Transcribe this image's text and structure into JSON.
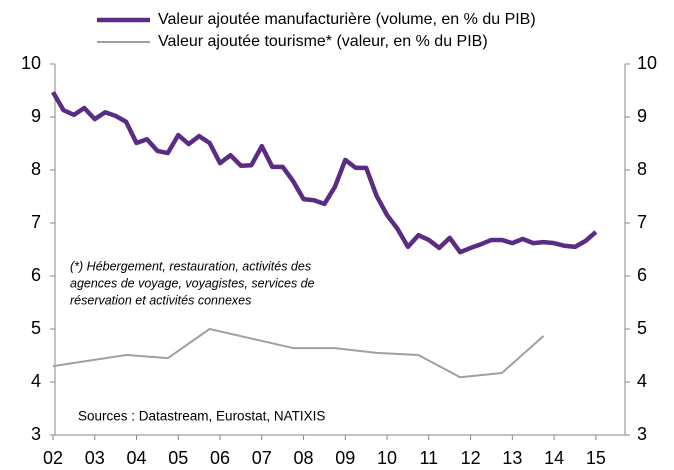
{
  "chart_data": {
    "type": "line",
    "series": [
      {
        "name": "Valeur ajoutée manufacturière (volume, en % du PIB)",
        "color": "#5b2c83",
        "x": [
          2002,
          2002.25,
          2002.5,
          2002.75,
          2003,
          2003.25,
          2003.5,
          2003.75,
          2004,
          2004.25,
          2004.5,
          2004.75,
          2005,
          2005.25,
          2005.5,
          2005.75,
          2006,
          2006.25,
          2006.5,
          2006.75,
          2007,
          2007.25,
          2007.5,
          2007.75,
          2008,
          2008.25,
          2008.5,
          2008.75,
          2009,
          2009.25,
          2009.5,
          2009.75,
          2010,
          2010.25,
          2010.5,
          2010.75,
          2011,
          2011.25,
          2011.5,
          2011.75,
          2012,
          2012.25,
          2012.5,
          2012.75,
          2013,
          2013.25,
          2013.5,
          2013.75,
          2014,
          2014.25,
          2014.5,
          2014.75,
          2015
        ],
        "values": [
          9.47,
          9.13,
          9.04,
          9.17,
          8.96,
          9.09,
          9.02,
          8.91,
          8.51,
          8.58,
          8.36,
          8.32,
          8.66,
          8.49,
          8.64,
          8.51,
          8.13,
          8.28,
          8.08,
          8.09,
          8.45,
          8.06,
          8.06,
          7.79,
          7.45,
          7.43,
          7.36,
          7.68,
          8.19,
          8.04,
          8.04,
          7.51,
          7.15,
          6.89,
          6.55,
          6.77,
          6.68,
          6.53,
          6.72,
          6.45,
          6.53,
          6.6,
          6.68,
          6.68,
          6.62,
          6.7,
          6.62,
          6.64,
          6.62,
          6.57,
          6.55,
          6.66,
          6.83
        ]
      },
      {
        "name": "Valeur ajoutée tourisme* (valeur, en % du PIB)",
        "color": "#a0a0a0",
        "x": [
          2002,
          2003.75,
          2004.75,
          2005.75,
          2007.75,
          2008.75,
          2009.75,
          2010.75,
          2011.75,
          2012.75,
          2013.75
        ],
        "values": [
          4.3,
          4.51,
          4.45,
          5.0,
          4.64,
          4.64,
          4.55,
          4.51,
          4.09,
          4.17,
          4.87
        ],
        "axis": "y2"
      }
    ],
    "xlim": [
      2002,
      2015.65
    ],
    "xticks": [
      {
        "value": 2002,
        "label": "02"
      },
      {
        "value": 2003,
        "label": "03"
      },
      {
        "value": 2004,
        "label": "04"
      },
      {
        "value": 2005,
        "label": "05"
      },
      {
        "value": 2006,
        "label": "06"
      },
      {
        "value": 2007,
        "label": "07"
      },
      {
        "value": 2008,
        "label": "08"
      },
      {
        "value": 2009,
        "label": "09"
      },
      {
        "value": 2010,
        "label": "10"
      },
      {
        "value": 2011,
        "label": "11"
      },
      {
        "value": 2012,
        "label": "12"
      },
      {
        "value": 2013,
        "label": "13"
      },
      {
        "value": 2014,
        "label": "14"
      },
      {
        "value": 2015,
        "label": "15"
      }
    ],
    "ylim": [
      3,
      10
    ],
    "yticks": [
      3,
      4,
      5,
      6,
      7,
      8,
      9,
      10
    ],
    "y2lim": [
      3,
      10
    ],
    "y2ticks": [
      3,
      4,
      5,
      6,
      7,
      8,
      9,
      10
    ],
    "annotations": [
      "(*) Hébergement, restauration, activités des",
      "agences de voyage, voyagistes, services de",
      "réservation et activités connexes"
    ],
    "source": "Sources : Datastream, Eurostat, NATIXIS"
  }
}
